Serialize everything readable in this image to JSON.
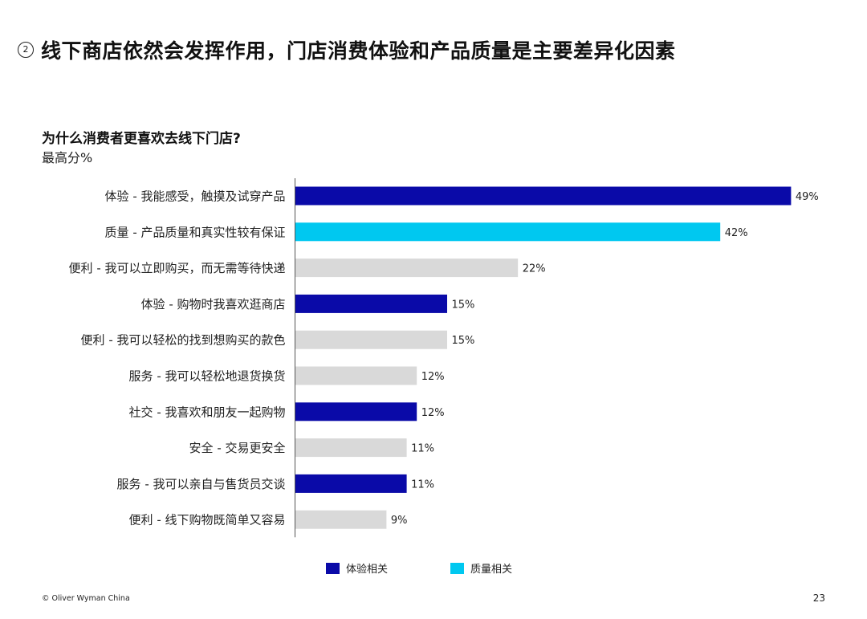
{
  "slide": {
    "step_number": "2",
    "title": "线下商店依然会发挥作用，门店消费体验和产品质量是主要差异化因素",
    "chart_heading": "为什么消费者更喜欢去线下门店?",
    "chart_subheading": "最高分%"
  },
  "colors": {
    "experience": "#0a0aa8",
    "quality": "#00c8f0",
    "other": "#d9d9d9"
  },
  "chart_data": {
    "type": "bar",
    "orientation": "horizontal",
    "value_suffix": "%",
    "xlim": [
      0,
      50
    ],
    "grid": false,
    "legend_position": "bottom",
    "categories": [
      "体验 - 我能感受，触摸及试穿产品",
      "质量 - 产品质量和真实性较有保证",
      "便利 - 我可以立即购买，而无需等待快递",
      "体验 - 购物时我喜欢逛商店",
      "便利 - 我可以轻松的找到想购买的款色",
      "服务 - 我可以轻松地退货换货",
      "社交 - 我喜欢和朋友一起购物",
      "安全 - 交易更安全",
      "服务 - 我可以亲自与售货员交谈",
      "便利 - 线下购物既简单又容易"
    ],
    "values": [
      49,
      42,
      22,
      15,
      15,
      12,
      12,
      11,
      11,
      9
    ],
    "groups": [
      "experience",
      "quality",
      "other",
      "experience",
      "other",
      "other",
      "experience",
      "other",
      "experience",
      "other"
    ],
    "legend": [
      {
        "key": "experience",
        "label": "体验相关"
      },
      {
        "key": "quality",
        "label": "质量相关"
      }
    ]
  },
  "footer": {
    "copyright": "© Oliver Wyman China",
    "page_number": "23"
  }
}
